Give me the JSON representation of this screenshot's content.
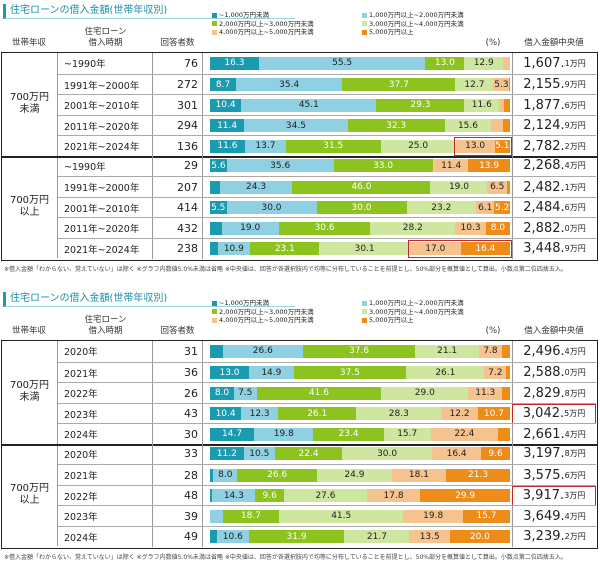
{
  "colors": [
    "#1a9bb0",
    "#8fd0e2",
    "#8cc31f",
    "#cfe6a0",
    "#f6c28e",
    "#ee8c1a"
  ],
  "legend": [
    "~1,000万円未満",
    "1,000万円以上~2,000万円未満",
    "2,000万円以上~3,000万円未満",
    "3,000万円以上~4,000万円未満",
    "4,000万円以上~5,000万円未満",
    "5,000万円以上"
  ],
  "chart_data": [
    {
      "type": "bar",
      "stacked": true,
      "orientation": "horizontal",
      "title": "住宅ローンの借入金額(世帯年収別)",
      "headers": {
        "income": "世帯年収",
        "period": "住宅ローン\n借入時期",
        "count": "回答者数",
        "percent": "(%)",
        "median": "借入金額中央値"
      },
      "groups": [
        {
          "label": "700万円\n未満",
          "rows": [
            0,
            1,
            2,
            3,
            4
          ]
        },
        {
          "label": "700万円\n以上",
          "rows": [
            5,
            6,
            7,
            8,
            9
          ]
        }
      ],
      "rows": [
        {
          "period": "~1990年",
          "n": "76",
          "values": [
            16.3,
            55.5,
            13.0,
            12.9,
            2.3,
            0
          ],
          "median": "1,607.1",
          "hl": false
        },
        {
          "period": "1991年~2000年",
          "n": "272",
          "values": [
            8.7,
            35.4,
            37.7,
            12.7,
            5.3,
            0.2
          ],
          "median": "2,155.9",
          "hl": false
        },
        {
          "period": "2001年~2010年",
          "n": "301",
          "values": [
            10.4,
            45.1,
            29.3,
            11.6,
            1.5,
            2.1
          ],
          "median": "1,877.6",
          "hl": false
        },
        {
          "period": "2011年~2020年",
          "n": "294",
          "values": [
            11.4,
            34.5,
            32.3,
            15.6,
            3.8,
            2.4
          ],
          "median": "2,124.9",
          "hl": false
        },
        {
          "period": "2021年~2024年",
          "n": "136",
          "values": [
            11.6,
            13.7,
            31.5,
            25.0,
            13.0,
            5.1
          ],
          "median": "2,782.2",
          "hl": true
        },
        {
          "period": "~1990年",
          "n": "29",
          "values": [
            5.6,
            35.6,
            33.0,
            0.5,
            11.4,
            13.9
          ],
          "median": "2,268.4",
          "hl": false
        },
        {
          "period": "1991年~2000年",
          "n": "207",
          "values": [
            3.2,
            24.3,
            46.0,
            19.0,
            6.5,
            1.0
          ],
          "median": "2,482.1",
          "hl": false
        },
        {
          "period": "2001年~2010年",
          "n": "414",
          "values": [
            5.5,
            30.0,
            30.0,
            23.2,
            6.1,
            5.2
          ],
          "median": "2,484.6",
          "hl": false
        },
        {
          "period": "2011年~2020年",
          "n": "432",
          "values": [
            3.9,
            19.0,
            30.6,
            28.2,
            10.3,
            8.0
          ],
          "median": "2,882.0",
          "hl": false
        },
        {
          "period": "2021年~2024年",
          "n": "238",
          "values": [
            2.5,
            10.9,
            23.1,
            30.1,
            17.0,
            16.4
          ],
          "median": "3,448.9",
          "hl": true
        }
      ],
      "highlight": "bar",
      "unit": "万円",
      "footnote": "※借入金額「わからない、覚えていない」は除く ※グラフ内数値5.0%未満は省略 ※中央値は、回答が各選択肢内で均等に分布していることを前提とし、50%部分を概算値として算出。小数点第二位四捨五入。"
    },
    {
      "type": "bar",
      "stacked": true,
      "orientation": "horizontal",
      "title": "住宅ローンの借入金額(世帯年収別)",
      "headers": {
        "income": "世帯年収",
        "period": "住宅ローン\n借入時期",
        "count": "回答者数",
        "percent": "(%)",
        "median": "借入金額中央値"
      },
      "groups": [
        {
          "label": "700万円\n未満",
          "rows": [
            0,
            1,
            2,
            3,
            4
          ]
        },
        {
          "label": "700万円\n以上",
          "rows": [
            5,
            6,
            7,
            8,
            9
          ]
        }
      ],
      "rows": [
        {
          "period": "2020年",
          "n": "31",
          "values": [
            4.3,
            26.6,
            37.6,
            21.1,
            7.8,
            2.6
          ],
          "median": "2,496.4",
          "hl": false
        },
        {
          "period": "2021年",
          "n": "36",
          "values": [
            13.0,
            14.9,
            37.5,
            26.1,
            7.2,
            1.3
          ],
          "median": "2,588.0",
          "hl": false
        },
        {
          "period": "2022年",
          "n": "26",
          "values": [
            8.0,
            7.5,
            41.6,
            29.0,
            11.3,
            2.6
          ],
          "median": "2,829.8",
          "hl": false
        },
        {
          "period": "2023年",
          "n": "43",
          "values": [
            10.4,
            12.3,
            26.1,
            28.3,
            12.2,
            10.7
          ],
          "median": "3,042.5",
          "hl": true
        },
        {
          "period": "2024年",
          "n": "30",
          "values": [
            14.7,
            19.8,
            23.4,
            15.7,
            22.4,
            4.0
          ],
          "median": "2,661.4",
          "hl": false
        },
        {
          "period": "2020年",
          "n": "33",
          "values": [
            11.2,
            10.5,
            22.4,
            30.0,
            16.4,
            9.6
          ],
          "median": "3,197.8",
          "hl": false
        },
        {
          "period": "2021年",
          "n": "28",
          "values": [
            1.1,
            8.0,
            26.6,
            24.9,
            18.1,
            21.3
          ],
          "median": "3,575.6",
          "hl": false
        },
        {
          "period": "2022年",
          "n": "48",
          "values": [
            0.8,
            14.3,
            9.6,
            27.6,
            17.8,
            29.9
          ],
          "median": "3,917.3",
          "hl": true
        },
        {
          "period": "2023年",
          "n": "39",
          "values": [
            0,
            4.3,
            18.7,
            41.5,
            19.8,
            15.7
          ],
          "median": "3,649.4",
          "hl": false
        },
        {
          "period": "2024年",
          "n": "49",
          "values": [
            2.3,
            10.6,
            31.9,
            21.7,
            13.5,
            20.0
          ],
          "median": "3,239.2",
          "hl": false
        }
      ],
      "highlight": "median",
      "unit": "万円",
      "footnote": "※借入金額「わからない、覚えていない」は除く ※グラフ内数値5.0%未満は省略 ※中央値は、回答が各選択肢内で均等に分布していることを前提とし、50%部分を概算値として算出。小数点第二位四捨五入。"
    }
  ]
}
